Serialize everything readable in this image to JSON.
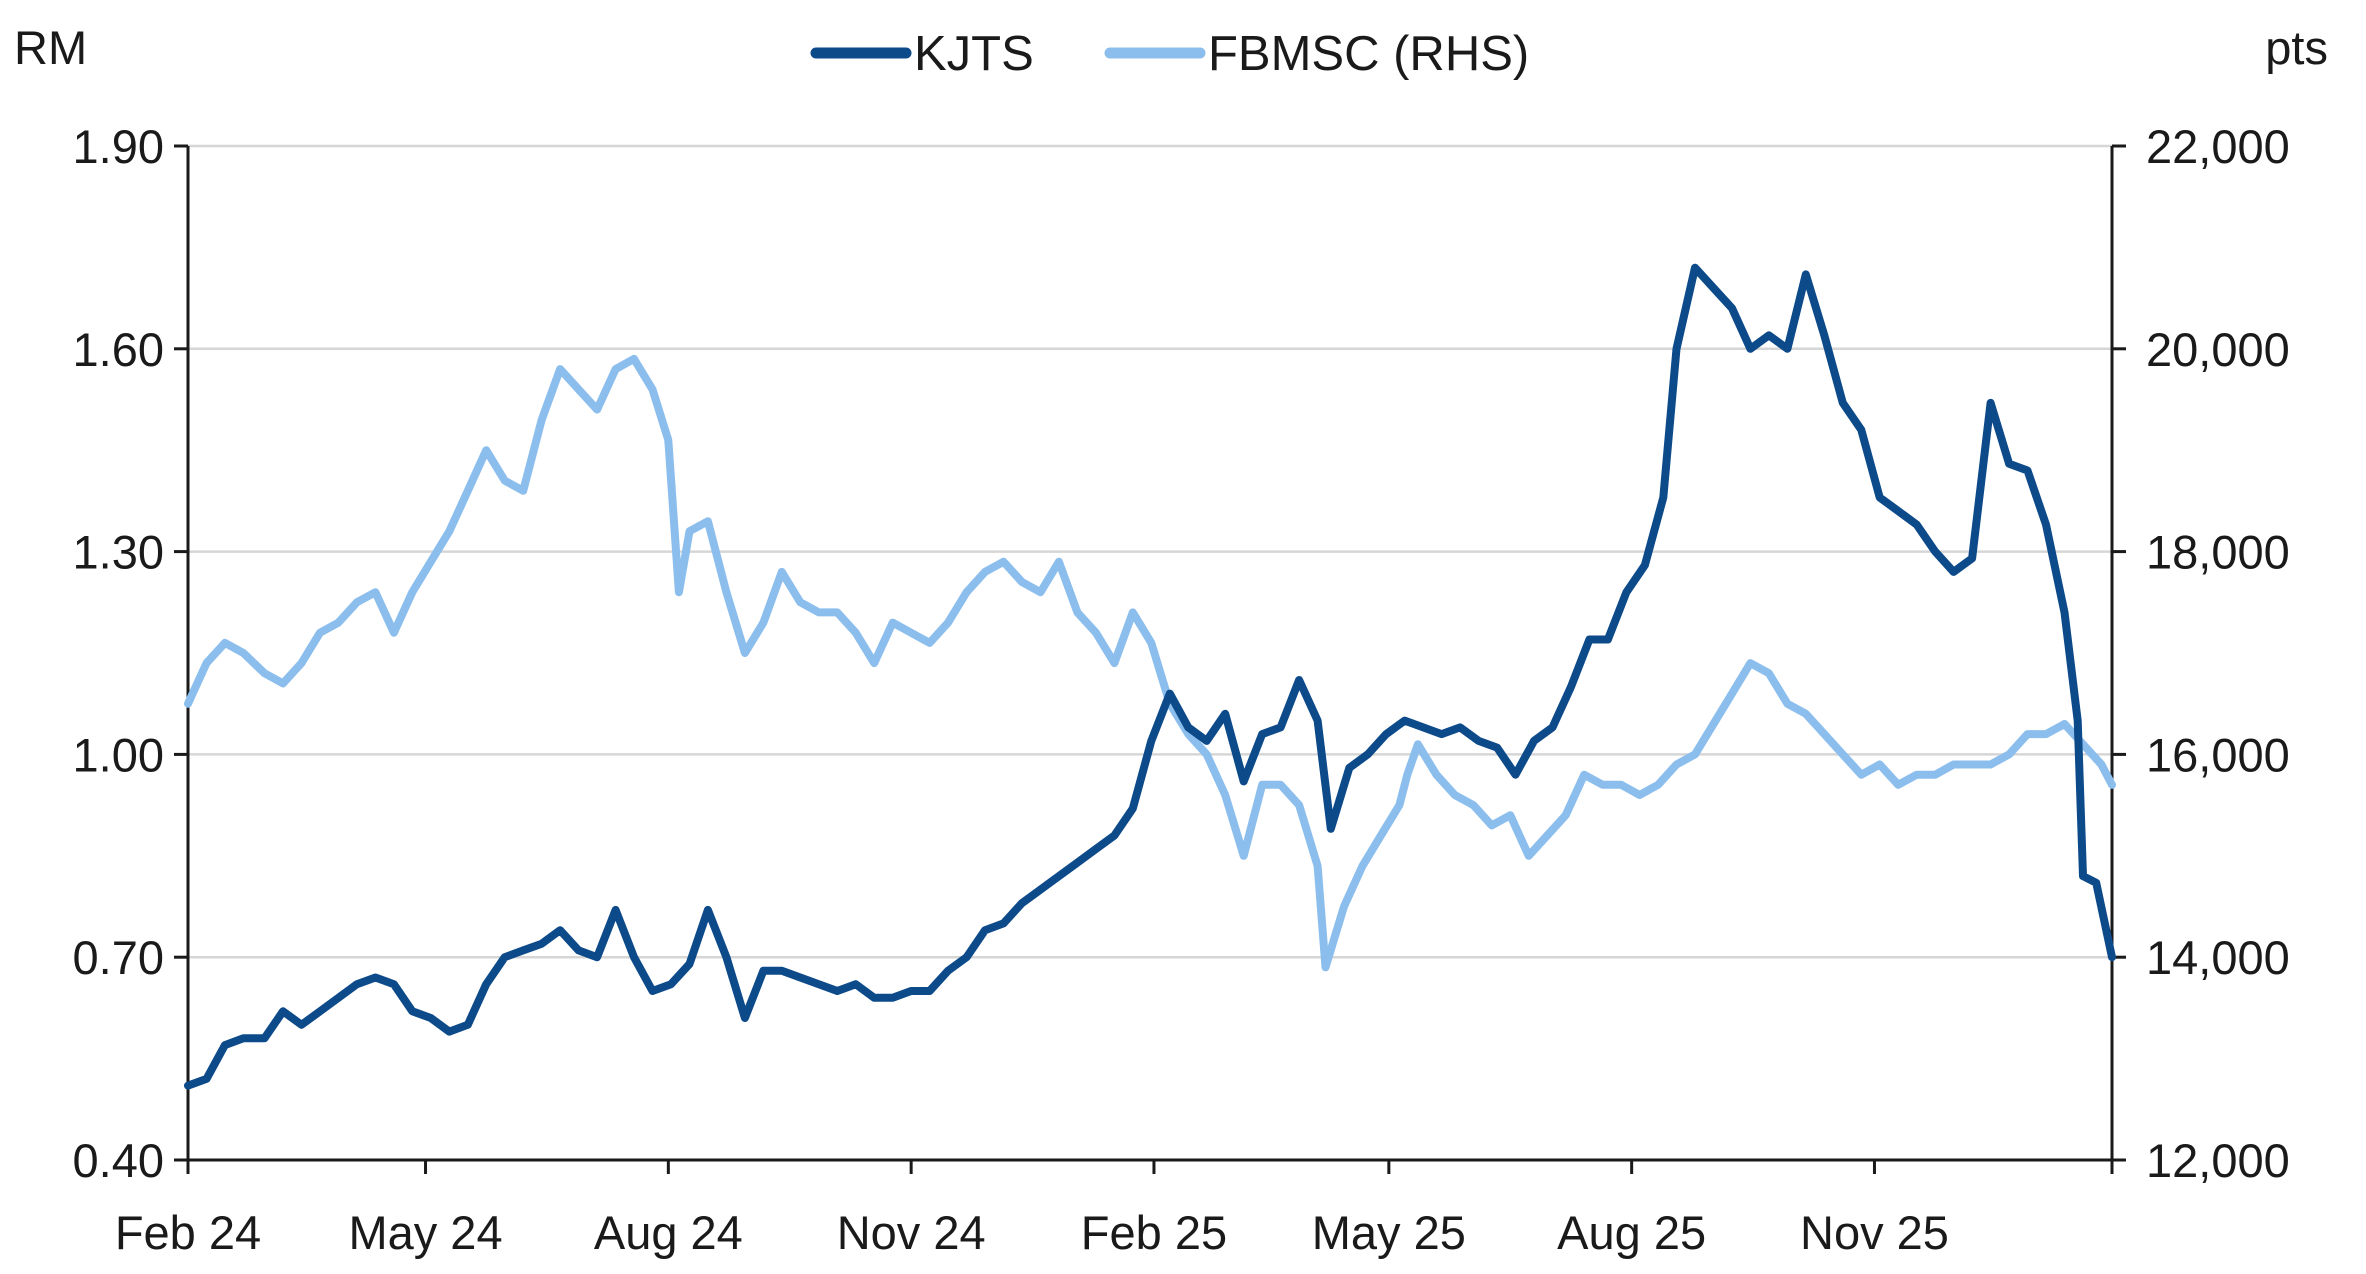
{
  "chart_data": {
    "type": "line",
    "left_unit": "RM",
    "right_unit": "pts",
    "x_tick_labels": [
      "Feb 24",
      "May 24",
      "Aug 24",
      "Nov 24",
      "Feb 25",
      "May 25",
      "Aug 25",
      "Nov 25"
    ],
    "x_tick_dates": [
      "2024-02-01",
      "2024-05-01",
      "2024-08-01",
      "2024-11-01",
      "2025-02-01",
      "2025-05-01",
      "2025-08-01",
      "2025-11-01"
    ],
    "x_end_date": "2026-01-30",
    "y_left": {
      "ticks": [
        0.4,
        0.7,
        1.0,
        1.3,
        1.6,
        1.9
      ],
      "tick_labels": [
        "0.40",
        "0.70",
        "1.00",
        "1.30",
        "1.60",
        "1.90"
      ],
      "range": [
        0.4,
        1.9
      ]
    },
    "y_right": {
      "ticks": [
        12000,
        14000,
        16000,
        18000,
        20000,
        22000
      ],
      "tick_labels": [
        "12,000",
        "14,000",
        "16,000",
        "18,000",
        "20,000",
        "22,000"
      ],
      "range": [
        12000,
        22000
      ]
    },
    "grid": true,
    "legend_position": "top-center",
    "series": [
      {
        "name": "KJTS",
        "axis": "left",
        "color": "#0d4a8a",
        "points": [
          [
            "2024-02-01",
            0.51
          ],
          [
            "2024-02-08",
            0.52
          ],
          [
            "2024-02-15",
            0.57
          ],
          [
            "2024-02-22",
            0.58
          ],
          [
            "2024-03-01",
            0.58
          ],
          [
            "2024-03-08",
            0.62
          ],
          [
            "2024-03-15",
            0.6
          ],
          [
            "2024-03-22",
            0.62
          ],
          [
            "2024-03-29",
            0.64
          ],
          [
            "2024-04-05",
            0.66
          ],
          [
            "2024-04-12",
            0.67
          ],
          [
            "2024-04-19",
            0.66
          ],
          [
            "2024-04-26",
            0.62
          ],
          [
            "2024-05-03",
            0.61
          ],
          [
            "2024-05-10",
            0.59
          ],
          [
            "2024-05-17",
            0.6
          ],
          [
            "2024-05-24",
            0.66
          ],
          [
            "2024-05-31",
            0.7
          ],
          [
            "2024-06-07",
            0.71
          ],
          [
            "2024-06-14",
            0.72
          ],
          [
            "2024-06-21",
            0.74
          ],
          [
            "2024-06-28",
            0.71
          ],
          [
            "2024-07-05",
            0.7
          ],
          [
            "2024-07-12",
            0.77
          ],
          [
            "2024-07-19",
            0.7
          ],
          [
            "2024-07-26",
            0.65
          ],
          [
            "2024-08-02",
            0.66
          ],
          [
            "2024-08-09",
            0.69
          ],
          [
            "2024-08-16",
            0.77
          ],
          [
            "2024-08-23",
            0.7
          ],
          [
            "2024-08-30",
            0.61
          ],
          [
            "2024-09-06",
            0.68
          ],
          [
            "2024-09-13",
            0.68
          ],
          [
            "2024-09-20",
            0.67
          ],
          [
            "2024-09-27",
            0.66
          ],
          [
            "2024-10-04",
            0.65
          ],
          [
            "2024-10-11",
            0.66
          ],
          [
            "2024-10-18",
            0.64
          ],
          [
            "2024-10-25",
            0.64
          ],
          [
            "2024-11-01",
            0.65
          ],
          [
            "2024-11-08",
            0.65
          ],
          [
            "2024-11-15",
            0.68
          ],
          [
            "2024-11-22",
            0.7
          ],
          [
            "2024-11-29",
            0.74
          ],
          [
            "2024-12-06",
            0.75
          ],
          [
            "2024-12-13",
            0.78
          ],
          [
            "2024-12-20",
            0.8
          ],
          [
            "2024-12-27",
            0.82
          ],
          [
            "2025-01-03",
            0.84
          ],
          [
            "2025-01-10",
            0.86
          ],
          [
            "2025-01-17",
            0.88
          ],
          [
            "2025-01-24",
            0.92
          ],
          [
            "2025-01-31",
            1.02
          ],
          [
            "2025-02-07",
            1.09
          ],
          [
            "2025-02-14",
            1.04
          ],
          [
            "2025-02-21",
            1.02
          ],
          [
            "2025-02-28",
            1.06
          ],
          [
            "2025-03-07",
            0.96
          ],
          [
            "2025-03-14",
            1.03
          ],
          [
            "2025-03-21",
            1.04
          ],
          [
            "2025-03-28",
            1.11
          ],
          [
            "2025-04-04",
            1.05
          ],
          [
            "2025-04-09",
            0.89
          ],
          [
            "2025-04-16",
            0.98
          ],
          [
            "2025-04-23",
            1.0
          ],
          [
            "2025-04-30",
            1.03
          ],
          [
            "2025-05-07",
            1.05
          ],
          [
            "2025-05-14",
            1.04
          ],
          [
            "2025-05-21",
            1.03
          ],
          [
            "2025-05-28",
            1.04
          ],
          [
            "2025-06-04",
            1.02
          ],
          [
            "2025-06-11",
            1.01
          ],
          [
            "2025-06-18",
            0.97
          ],
          [
            "2025-06-25",
            1.02
          ],
          [
            "2025-07-02",
            1.04
          ],
          [
            "2025-07-09",
            1.1
          ],
          [
            "2025-07-16",
            1.17
          ],
          [
            "2025-07-23",
            1.17
          ],
          [
            "2025-07-30",
            1.24
          ],
          [
            "2025-08-06",
            1.28
          ],
          [
            "2025-08-13",
            1.38
          ],
          [
            "2025-08-18",
            1.6
          ],
          [
            "2025-08-25",
            1.72
          ],
          [
            "2025-09-01",
            1.69
          ],
          [
            "2025-09-08",
            1.66
          ],
          [
            "2025-09-15",
            1.6
          ],
          [
            "2025-09-22",
            1.62
          ],
          [
            "2025-09-29",
            1.6
          ],
          [
            "2025-10-06",
            1.71
          ],
          [
            "2025-10-13",
            1.62
          ],
          [
            "2025-10-20",
            1.52
          ],
          [
            "2025-10-27",
            1.48
          ],
          [
            "2025-11-03",
            1.38
          ],
          [
            "2025-11-10",
            1.36
          ],
          [
            "2025-11-17",
            1.34
          ],
          [
            "2025-11-24",
            1.3
          ],
          [
            "2025-12-01",
            1.27
          ],
          [
            "2025-12-08",
            1.29
          ],
          [
            "2025-12-15",
            1.52
          ],
          [
            "2025-12-22",
            1.43
          ],
          [
            "2025-12-29",
            1.42
          ],
          [
            "2026-01-05",
            1.34
          ],
          [
            "2026-01-12",
            1.21
          ],
          [
            "2026-01-17",
            1.05
          ],
          [
            "2026-01-19",
            0.82
          ],
          [
            "2026-01-24",
            0.81
          ],
          [
            "2026-01-30",
            0.7
          ]
        ]
      },
      {
        "name": "FBMSC (RHS)",
        "axis": "right",
        "color": "#8cbeed",
        "points": [
          [
            "2024-02-01",
            16500
          ],
          [
            "2024-02-08",
            16900
          ],
          [
            "2024-02-15",
            17100
          ],
          [
            "2024-02-22",
            17000
          ],
          [
            "2024-03-01",
            16800
          ],
          [
            "2024-03-08",
            16700
          ],
          [
            "2024-03-15",
            16900
          ],
          [
            "2024-03-22",
            17200
          ],
          [
            "2024-03-29",
            17300
          ],
          [
            "2024-04-05",
            17500
          ],
          [
            "2024-04-12",
            17600
          ],
          [
            "2024-04-19",
            17200
          ],
          [
            "2024-04-26",
            17600
          ],
          [
            "2024-05-03",
            17900
          ],
          [
            "2024-05-10",
            18200
          ],
          [
            "2024-05-17",
            18600
          ],
          [
            "2024-05-24",
            19000
          ],
          [
            "2024-05-31",
            18700
          ],
          [
            "2024-06-07",
            18600
          ],
          [
            "2024-06-14",
            19300
          ],
          [
            "2024-06-21",
            19800
          ],
          [
            "2024-06-28",
            19600
          ],
          [
            "2024-07-05",
            19400
          ],
          [
            "2024-07-12",
            19800
          ],
          [
            "2024-07-19",
            19900
          ],
          [
            "2024-07-26",
            19600
          ],
          [
            "2024-08-01",
            19100
          ],
          [
            "2024-08-05",
            17600
          ],
          [
            "2024-08-09",
            18200
          ],
          [
            "2024-08-16",
            18300
          ],
          [
            "2024-08-23",
            17600
          ],
          [
            "2024-08-30",
            17000
          ],
          [
            "2024-09-06",
            17300
          ],
          [
            "2024-09-13",
            17800
          ],
          [
            "2024-09-20",
            17500
          ],
          [
            "2024-09-27",
            17400
          ],
          [
            "2024-10-04",
            17400
          ],
          [
            "2024-10-11",
            17200
          ],
          [
            "2024-10-18",
            16900
          ],
          [
            "2024-10-25",
            17300
          ],
          [
            "2024-11-01",
            17200
          ],
          [
            "2024-11-08",
            17100
          ],
          [
            "2024-11-15",
            17300
          ],
          [
            "2024-11-22",
            17600
          ],
          [
            "2024-11-29",
            17800
          ],
          [
            "2024-12-06",
            17900
          ],
          [
            "2024-12-13",
            17700
          ],
          [
            "2024-12-20",
            17600
          ],
          [
            "2024-12-27",
            17900
          ],
          [
            "2025-01-03",
            17400
          ],
          [
            "2025-01-10",
            17200
          ],
          [
            "2025-01-17",
            16900
          ],
          [
            "2025-01-24",
            17400
          ],
          [
            "2025-01-31",
            17100
          ],
          [
            "2025-02-07",
            16500
          ],
          [
            "2025-02-14",
            16200
          ],
          [
            "2025-02-21",
            16000
          ],
          [
            "2025-02-28",
            15600
          ],
          [
            "2025-03-07",
            15000
          ],
          [
            "2025-03-14",
            15700
          ],
          [
            "2025-03-21",
            15700
          ],
          [
            "2025-03-28",
            15500
          ],
          [
            "2025-04-04",
            14900
          ],
          [
            "2025-04-07",
            13900
          ],
          [
            "2025-04-14",
            14500
          ],
          [
            "2025-04-21",
            14900
          ],
          [
            "2025-04-28",
            15200
          ],
          [
            "2025-05-05",
            15500
          ],
          [
            "2025-05-08",
            15800
          ],
          [
            "2025-05-12",
            16100
          ],
          [
            "2025-05-19",
            15800
          ],
          [
            "2025-05-26",
            15600
          ],
          [
            "2025-06-02",
            15500
          ],
          [
            "2025-06-09",
            15300
          ],
          [
            "2025-06-16",
            15400
          ],
          [
            "2025-06-23",
            15000
          ],
          [
            "2025-06-30",
            15200
          ],
          [
            "2025-07-07",
            15400
          ],
          [
            "2025-07-14",
            15800
          ],
          [
            "2025-07-21",
            15700
          ],
          [
            "2025-07-28",
            15700
          ],
          [
            "2025-08-04",
            15600
          ],
          [
            "2025-08-11",
            15700
          ],
          [
            "2025-08-18",
            15900
          ],
          [
            "2025-08-25",
            16000
          ],
          [
            "2025-09-01",
            16300
          ],
          [
            "2025-09-08",
            16600
          ],
          [
            "2025-09-15",
            16900
          ],
          [
            "2025-09-22",
            16800
          ],
          [
            "2025-09-29",
            16500
          ],
          [
            "2025-10-06",
            16400
          ],
          [
            "2025-10-13",
            16200
          ],
          [
            "2025-10-20",
            16000
          ],
          [
            "2025-10-27",
            15800
          ],
          [
            "2025-11-03",
            15900
          ],
          [
            "2025-11-10",
            15700
          ],
          [
            "2025-11-17",
            15800
          ],
          [
            "2025-11-24",
            15800
          ],
          [
            "2025-12-01",
            15900
          ],
          [
            "2025-12-08",
            15900
          ],
          [
            "2025-12-15",
            15900
          ],
          [
            "2025-12-22",
            16000
          ],
          [
            "2025-12-29",
            16200
          ],
          [
            "2026-01-05",
            16200
          ],
          [
            "2026-01-12",
            16300
          ],
          [
            "2026-01-19",
            16100
          ],
          [
            "2026-01-26",
            15900
          ],
          [
            "2026-01-30",
            15700
          ]
        ]
      }
    ]
  }
}
